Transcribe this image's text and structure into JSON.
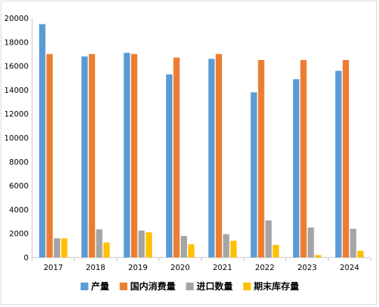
{
  "chart_data": {
    "type": "bar",
    "categories": [
      "2017",
      "2018",
      "2019",
      "2020",
      "2021",
      "2022",
      "2023",
      "2024"
    ],
    "series": [
      {
        "name": "产量",
        "color": "#5b9bd5",
        "values": [
          19500,
          16800,
          17100,
          15300,
          16600,
          13800,
          14900,
          15600
        ]
      },
      {
        "name": "国内消费量",
        "color": "#ed7d31",
        "values": [
          17000,
          17000,
          17000,
          16700,
          17000,
          16500,
          16500,
          16500
        ]
      },
      {
        "name": "进口数量",
        "color": "#a5a5a5",
        "values": [
          1600,
          2350,
          2250,
          1800,
          1950,
          3100,
          2500,
          2400
        ]
      },
      {
        "name": "期末库存量",
        "color": "#ffc000",
        "values": [
          1600,
          1250,
          2100,
          1100,
          1400,
          1050,
          200,
          550
        ]
      }
    ],
    "ylim": [
      0,
      20000
    ],
    "yticks": [
      "0",
      "2000",
      "4000",
      "6000",
      "8000",
      "10000",
      "12000",
      "14000",
      "16000",
      "18000",
      "20000"
    ],
    "xlabel": "",
    "ylabel": "",
    "title": "",
    "grid": false,
    "legend_position": "bottom"
  }
}
